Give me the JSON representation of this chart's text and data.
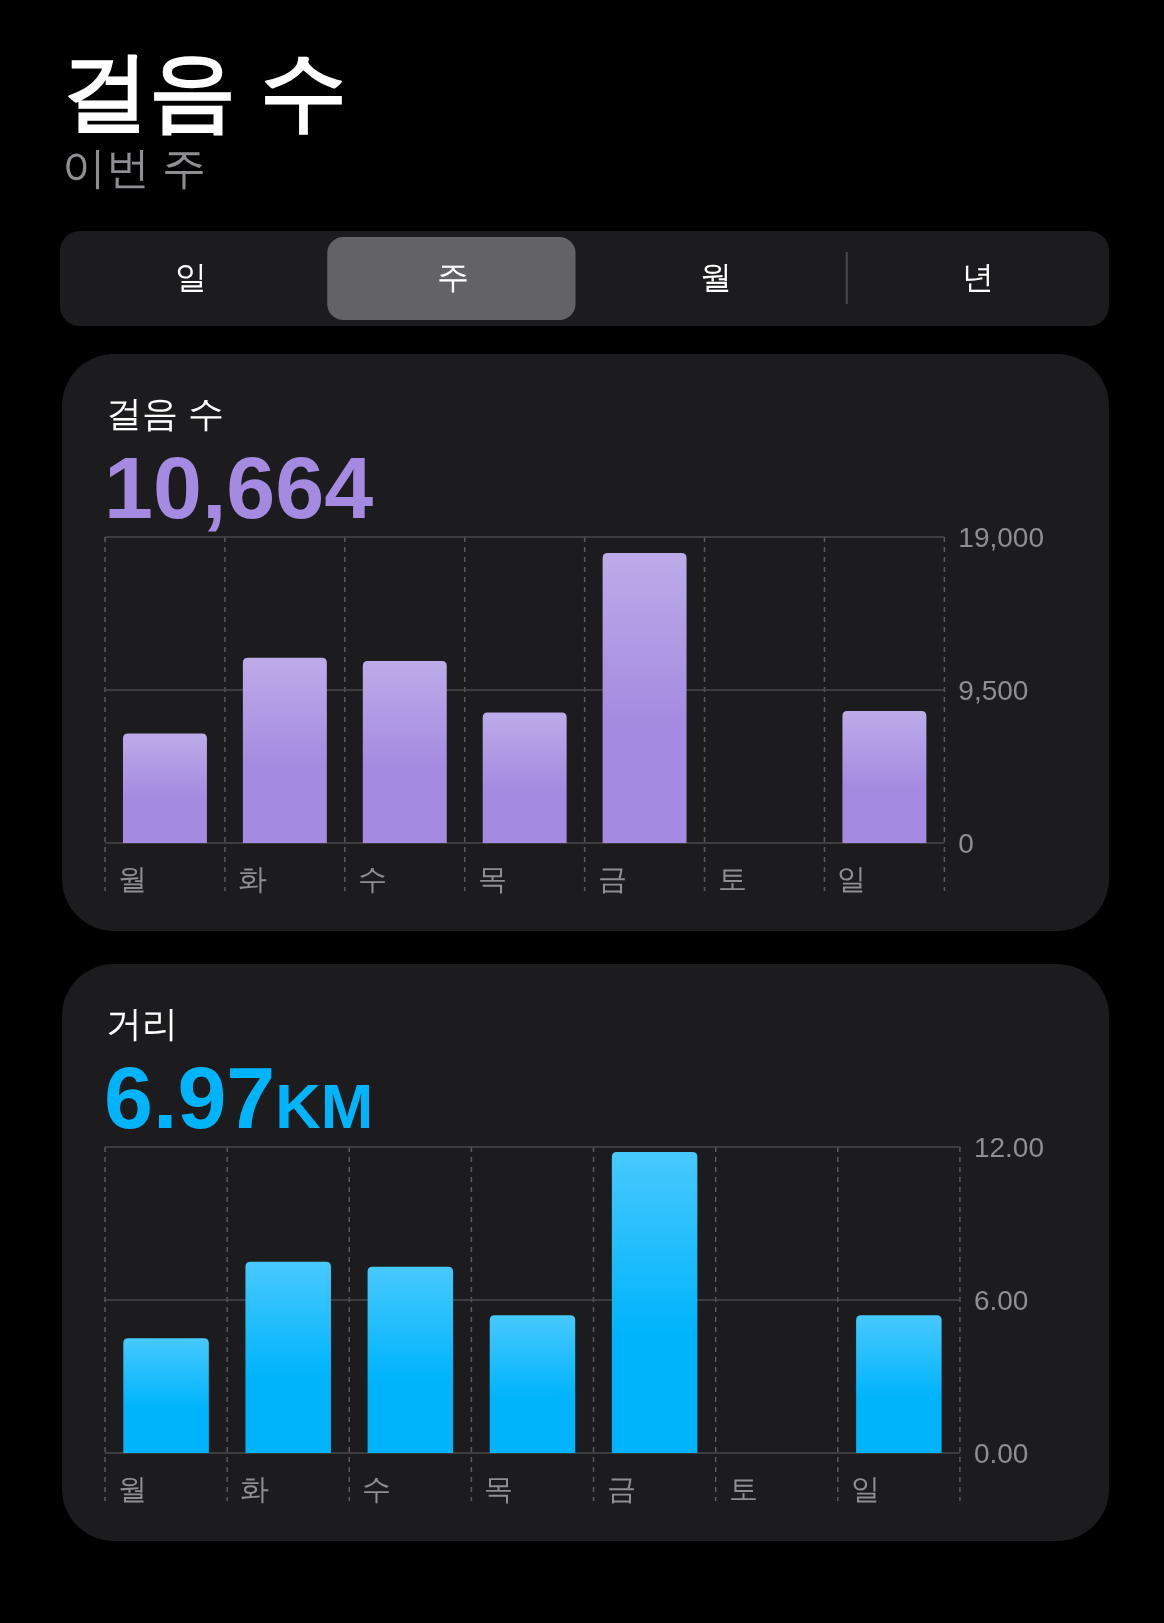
{
  "chart_data": [
    {
      "type": "other",
      "title": "걸음 수",
      "subtitle": "이번 주",
      "annotations": [
        "일",
        "주",
        "월",
        "년"
      ]
    },
    {
      "type": "bar",
      "title": "걸음 수",
      "subtitle": "10,664",
      "categories": [
        "월",
        "화",
        "수",
        "목",
        "금",
        "토",
        "일"
      ],
      "values": [
        6800,
        11500,
        11300,
        8100,
        18000,
        null,
        8200
      ],
      "color": "#a48ae0",
      "ylim": [
        0,
        19000
      ],
      "yticks": [
        0,
        {
          "value": 9500,
          "label": "9,500"
        },
        {
          "value": 19000,
          "label": "19,000"
        }
      ],
      "grid": true
    },
    {
      "type": "bar",
      "title": "거리",
      "subtitle": "6.97KM",
      "categories": [
        "월",
        "화",
        "수",
        "목",
        "금",
        "토",
        "일"
      ],
      "values": [
        4.5,
        7.5,
        7.3,
        5.4,
        11.8,
        null,
        5.4
      ],
      "color": "#00b4fc",
      "ylim": [
        0,
        12
      ],
      "yticks": [
        {
          "value": 0,
          "label": "0.00"
        },
        {
          "value": 6,
          "label": "6.00"
        },
        {
          "value": 12,
          "label": "12.00"
        }
      ],
      "grid": true
    }
  ]
}
